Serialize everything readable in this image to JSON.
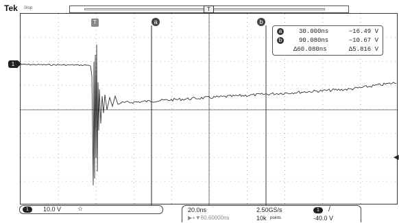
{
  "header": {
    "brand": "Tek",
    "status": "Stop",
    "record_marker": "T"
  },
  "cursors": {
    "a_label": "a",
    "b_label": "b",
    "trigger_label": "T"
  },
  "measurements": {
    "a": {
      "label": "a",
      "time": "30.000ns",
      "value": "−16.49 V"
    },
    "b": {
      "label": "b",
      "time": "90.080ns",
      "value": "−10.67 V"
    },
    "delta": {
      "time": "Δ60.080ns",
      "value": "Δ5.816 V"
    }
  },
  "channel": {
    "number": "1",
    "scale": "10.0 V",
    "coupling_icon": "bandwidth-icon"
  },
  "horizontal": {
    "scale": "20.0ns",
    "position": "▶+▼60.60000ns",
    "sample_rate": "2.50GS/s",
    "record_length": "10k",
    "record_unit": "points"
  },
  "trigger": {
    "source": "1",
    "slope_icon": "rising-edge-icon",
    "slope": "/",
    "level": "-40.0 V"
  },
  "colors": {
    "trace": "#333333",
    "grid": "#666666",
    "background": "#ffffff"
  }
}
